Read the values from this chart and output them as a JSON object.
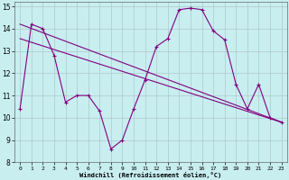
{
  "xlabel": "Windchill (Refroidissement éolien,°C)",
  "background_color": "#c8eef0",
  "line_color": "#800080",
  "xlim": [
    -0.5,
    23.5
  ],
  "ylim": [
    8,
    15.2
  ],
  "xticks": [
    0,
    1,
    2,
    3,
    4,
    5,
    6,
    7,
    8,
    9,
    10,
    11,
    12,
    13,
    14,
    15,
    16,
    17,
    18,
    19,
    20,
    21,
    22,
    23
  ],
  "yticks": [
    8,
    9,
    10,
    11,
    12,
    13,
    14,
    15
  ],
  "grid_color": "#b0c8c8",
  "line1_x": [
    0,
    1,
    2,
    3,
    4,
    5,
    6,
    7,
    8,
    9,
    10,
    11,
    12,
    13,
    14,
    15,
    16,
    17,
    18,
    19,
    20,
    21,
    22,
    23
  ],
  "line1_y": [
    10.4,
    14.2,
    14.0,
    12.8,
    10.7,
    11.0,
    11.0,
    10.3,
    8.6,
    9.0,
    10.4,
    11.7,
    13.2,
    13.55,
    14.85,
    14.92,
    14.85,
    13.9,
    13.5,
    11.5,
    10.4,
    11.5,
    10.0,
    9.8
  ],
  "line2_x": [
    0,
    23
  ],
  "line2_y": [
    14.2,
    9.8
  ],
  "line3_x": [
    0,
    23
  ],
  "line3_y": [
    13.55,
    9.8
  ],
  "marker": "+"
}
